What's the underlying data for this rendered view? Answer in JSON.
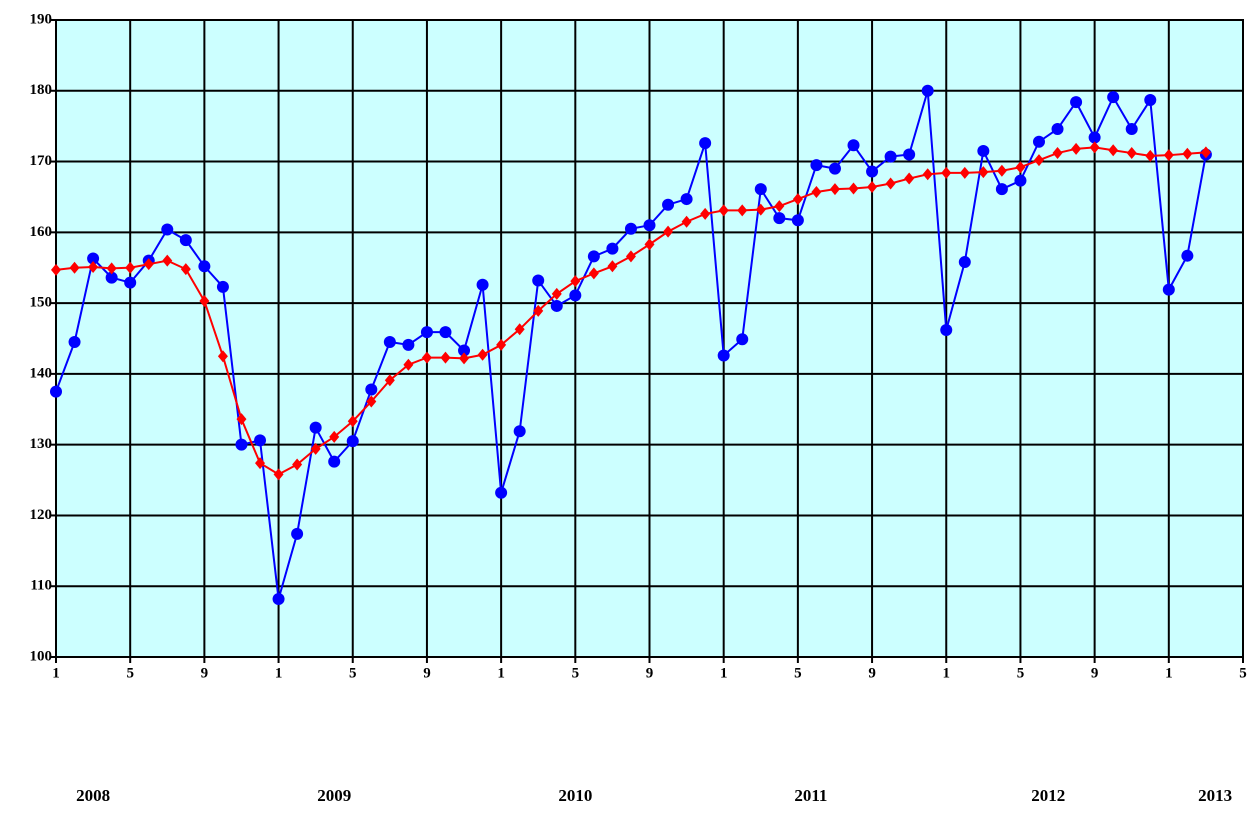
{
  "chart_data": {
    "type": "line",
    "x": [
      0,
      1,
      2,
      3,
      4,
      5,
      6,
      7,
      8,
      9,
      10,
      11,
      12,
      13,
      14,
      15,
      16,
      17,
      18,
      19,
      20,
      21,
      22,
      23,
      24,
      25,
      26,
      27,
      28,
      29,
      30,
      31,
      32,
      33,
      34,
      35,
      36,
      37,
      38,
      39,
      40,
      41,
      42,
      43,
      44,
      45,
      46,
      47,
      48,
      49,
      50,
      51,
      52,
      53,
      54,
      55,
      56,
      57,
      58,
      59,
      60,
      61,
      62
    ],
    "xlim": [
      0,
      64
    ],
    "xticks": [
      {
        "value": 0,
        "label": "1"
      },
      {
        "value": 4,
        "label": "5"
      },
      {
        "value": 8,
        "label": "9"
      },
      {
        "value": 12,
        "label": "1"
      },
      {
        "value": 16,
        "label": "5"
      },
      {
        "value": 20,
        "label": "9"
      },
      {
        "value": 24,
        "label": "1"
      },
      {
        "value": 28,
        "label": "5"
      },
      {
        "value": 32,
        "label": "9"
      },
      {
        "value": 36,
        "label": "1"
      },
      {
        "value": 40,
        "label": "5"
      },
      {
        "value": 44,
        "label": "9"
      },
      {
        "value": 48,
        "label": "1"
      },
      {
        "value": 52,
        "label": "5"
      },
      {
        "value": 56,
        "label": "9"
      },
      {
        "value": 60,
        "label": "1"
      },
      {
        "value": 64,
        "label": "5"
      }
    ],
    "ylim": [
      100,
      190
    ],
    "yticks": [
      100,
      110,
      120,
      130,
      140,
      150,
      160,
      170,
      180,
      190
    ],
    "grid": true,
    "plot_background": "#ccffff",
    "annotations": [
      {
        "text": "2008",
        "x": 2
      },
      {
        "text": "2009",
        "x": 15
      },
      {
        "text": "2010",
        "x": 28
      },
      {
        "text": "2011",
        "x": 40.7
      },
      {
        "text": "2012",
        "x": 53.5
      },
      {
        "text": "2013",
        "x": 62.5
      }
    ],
    "series": [
      {
        "color": "#0000ff",
        "marker": "circle",
        "values": [
          137.5,
          144.5,
          156.3,
          153.6,
          152.9,
          156,
          160.4,
          158.9,
          155.2,
          152.3,
          130,
          130.6,
          108.2,
          117.4,
          132.4,
          127.6,
          130.5,
          137.8,
          144.5,
          144.1,
          145.9,
          145.9,
          143.3,
          152.6,
          123.2,
          131.9,
          153.2,
          149.6,
          151.1,
          156.6,
          157.7,
          160.5,
          161,
          163.9,
          164.7,
          172.6,
          142.6,
          144.9,
          166.1,
          162,
          161.7,
          169.5,
          169,
          172.3,
          168.6,
          170.7,
          171,
          180,
          146.2,
          155.8,
          171.5,
          166.1,
          167.3,
          172.8,
          174.6,
          178.4,
          173.4,
          179.1,
          174.6,
          178.7,
          151.9,
          156.7,
          171
        ]
      },
      {
        "color": "#ff0000",
        "marker": "diamond",
        "values": [
          154.7,
          155,
          155.1,
          154.9,
          155,
          155.5,
          156,
          154.8,
          150.3,
          142.5,
          133.6,
          127.4,
          125.8,
          127.2,
          129.4,
          131.1,
          133.3,
          136.1,
          139.1,
          141.3,
          142.3,
          142.3,
          142.2,
          142.7,
          144.1,
          146.3,
          148.9,
          151.3,
          153.1,
          154.2,
          155.2,
          156.6,
          158.3,
          160.1,
          161.5,
          162.6,
          163.1,
          163.1,
          163.2,
          163.7,
          164.7,
          165.7,
          166.1,
          166.2,
          166.4,
          166.9,
          167.6,
          168.2,
          168.4,
          168.4,
          168.5,
          168.7,
          169.2,
          170.2,
          171.2,
          171.8,
          172,
          171.6,
          171.2,
          170.8,
          170.9,
          171.1,
          171.3
        ]
      }
    ]
  }
}
